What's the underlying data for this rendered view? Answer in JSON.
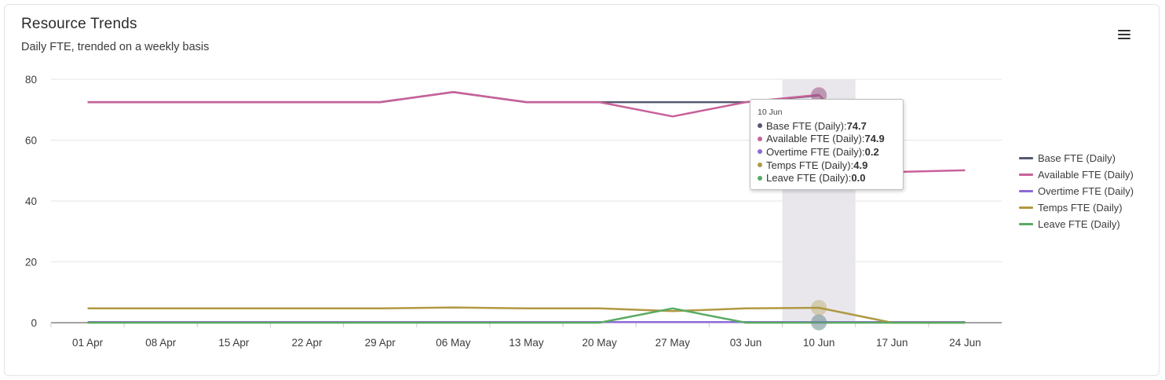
{
  "card": {
    "title": "Resource Trends",
    "subtitle": "Daily FTE, trended on a weekly basis",
    "menu_icon": "hamburger-menu-icon"
  },
  "chart_data": {
    "type": "line",
    "categories": [
      "01 Apr",
      "08 Apr",
      "15 Apr",
      "22 Apr",
      "29 Apr",
      "06 May",
      "13 May",
      "20 May",
      "27 May",
      "03 Jun",
      "10 Jun",
      "17 Jun",
      "24 Jun"
    ],
    "ylim": [
      0,
      80
    ],
    "yticks": [
      0,
      20,
      40,
      60,
      80
    ],
    "grid": true,
    "legend_position": "right",
    "highlighted_category": "10 Jun",
    "series": [
      {
        "name": "Base FTE (Daily)",
        "color": "#565771",
        "values": [
          72.5,
          72.5,
          72.5,
          72.5,
          72.5,
          75.8,
          72.5,
          72.5,
          72.5,
          72.5,
          74.7,
          null,
          null
        ]
      },
      {
        "name": "Available FTE (Daily)",
        "color": "#c8619a",
        "values": [
          72.5,
          72.5,
          72.5,
          72.5,
          72.5,
          75.8,
          72.5,
          72.5,
          67.8,
          72.5,
          74.9,
          49.5,
          50.1
        ]
      },
      {
        "name": "Overtime FTE (Daily)",
        "color": "#8c6bd6",
        "values": [
          0.2,
          0.2,
          0.2,
          0.2,
          0.2,
          0.2,
          0.2,
          0.2,
          0.2,
          0.2,
          0.2,
          0.2,
          0.2
        ]
      },
      {
        "name": "Temps FTE (Daily)",
        "color": "#b09942",
        "values": [
          4.7,
          4.7,
          4.7,
          4.7,
          4.7,
          5.0,
          4.7,
          4.7,
          3.8,
          4.7,
          4.9,
          0.0,
          0.0
        ]
      },
      {
        "name": "Leave FTE (Daily)",
        "color": "#5aaa63",
        "values": [
          0.0,
          0.0,
          0.0,
          0.0,
          0.0,
          0.0,
          0.0,
          0.0,
          4.7,
          0.0,
          0.0,
          0.0,
          0.0
        ]
      }
    ]
  },
  "tooltip": {
    "header": "10 Jun",
    "rows": [
      {
        "label": "Base FTE (Daily): ",
        "value": "74.7",
        "color": "#565771"
      },
      {
        "label": "Available FTE (Daily): ",
        "value": "74.9",
        "color": "#c8619a"
      },
      {
        "label": "Overtime FTE (Daily): ",
        "value": "0.2",
        "color": "#8c6bd6"
      },
      {
        "label": "Temps FTE (Daily): ",
        "value": "4.9",
        "color": "#b09942"
      },
      {
        "label": "Leave FTE (Daily): ",
        "value": "0.0",
        "color": "#5aaa63"
      }
    ]
  }
}
